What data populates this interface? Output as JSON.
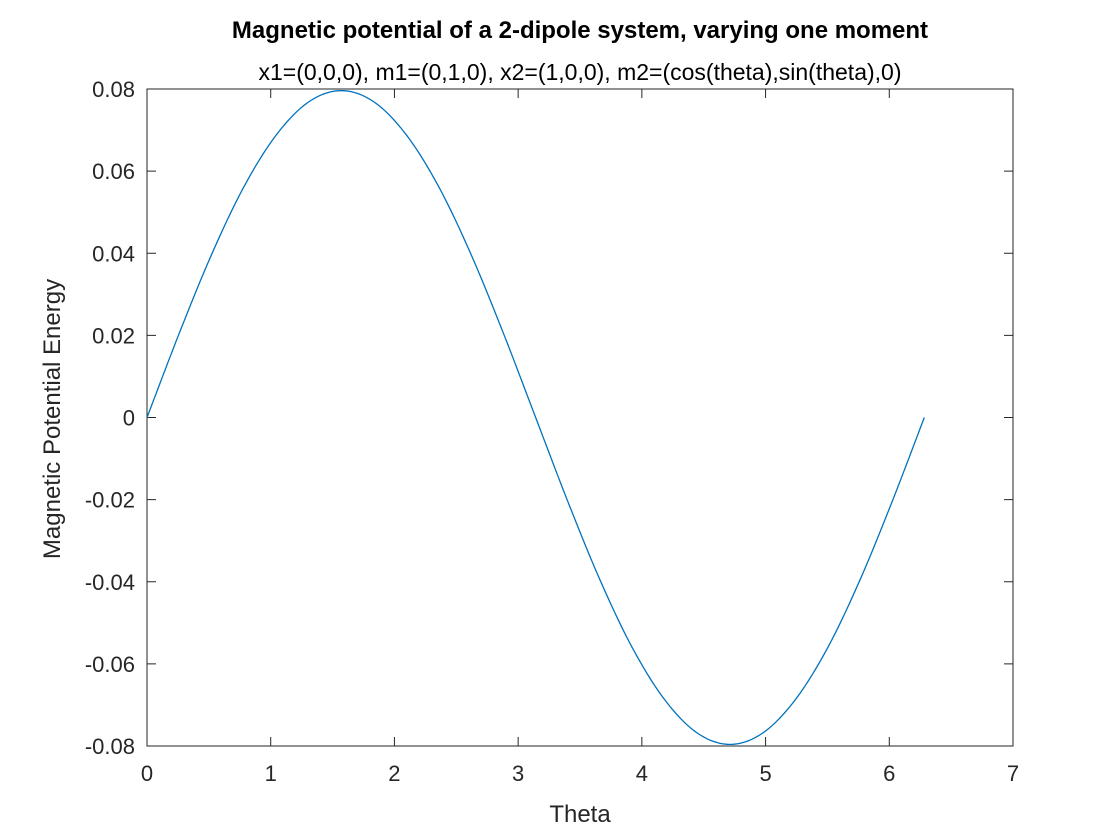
{
  "chart_data": {
    "type": "line",
    "title": "Magnetic potential of a 2-dipole system, varying one moment",
    "subtitle": "x1=(0,0,0), m1=(0,1,0), x2=(1,0,0), m2=(cos(theta),sin(theta),0)",
    "xlabel": "Theta",
    "ylabel": "Magnetic Potential Energy",
    "xlim": [
      0,
      7
    ],
    "ylim": [
      -0.08,
      0.08
    ],
    "x_ticks": [
      0,
      1,
      2,
      3,
      4,
      5,
      6,
      7
    ],
    "x_tick_labels": [
      "0",
      "1",
      "2",
      "3",
      "4",
      "5",
      "6",
      "7"
    ],
    "y_ticks": [
      0.08,
      0.06,
      0.04,
      0.02,
      0,
      -0.02,
      -0.04,
      -0.06,
      -0.08
    ],
    "y_tick_labels": [
      "0.08",
      "0.06",
      "0.04",
      "0.02",
      "0",
      "-0.02",
      "-0.04",
      "-0.06",
      "-0.08"
    ],
    "grid": false,
    "series": [
      {
        "color": "#0072BD",
        "x": [
          0,
          0.2618,
          0.5236,
          0.7854,
          1.0472,
          1.309,
          1.5708,
          1.8326,
          2.0944,
          2.3562,
          2.618,
          2.8798,
          3.1416,
          3.4034,
          3.6652,
          3.927,
          4.1888,
          4.4506,
          4.7124,
          4.9742,
          5.236,
          5.4978,
          5.7596,
          6.0214,
          6.2832
        ],
        "y": [
          0,
          0.0206,
          0.0398,
          0.0563,
          0.0689,
          0.0769,
          0.0796,
          0.0769,
          0.0689,
          0.0563,
          0.0398,
          0.0206,
          0,
          -0.0206,
          -0.0398,
          -0.0563,
          -0.0689,
          -0.0769,
          -0.0796,
          -0.0769,
          -0.0689,
          -0.0563,
          -0.0398,
          -0.0206,
          0
        ]
      }
    ]
  }
}
